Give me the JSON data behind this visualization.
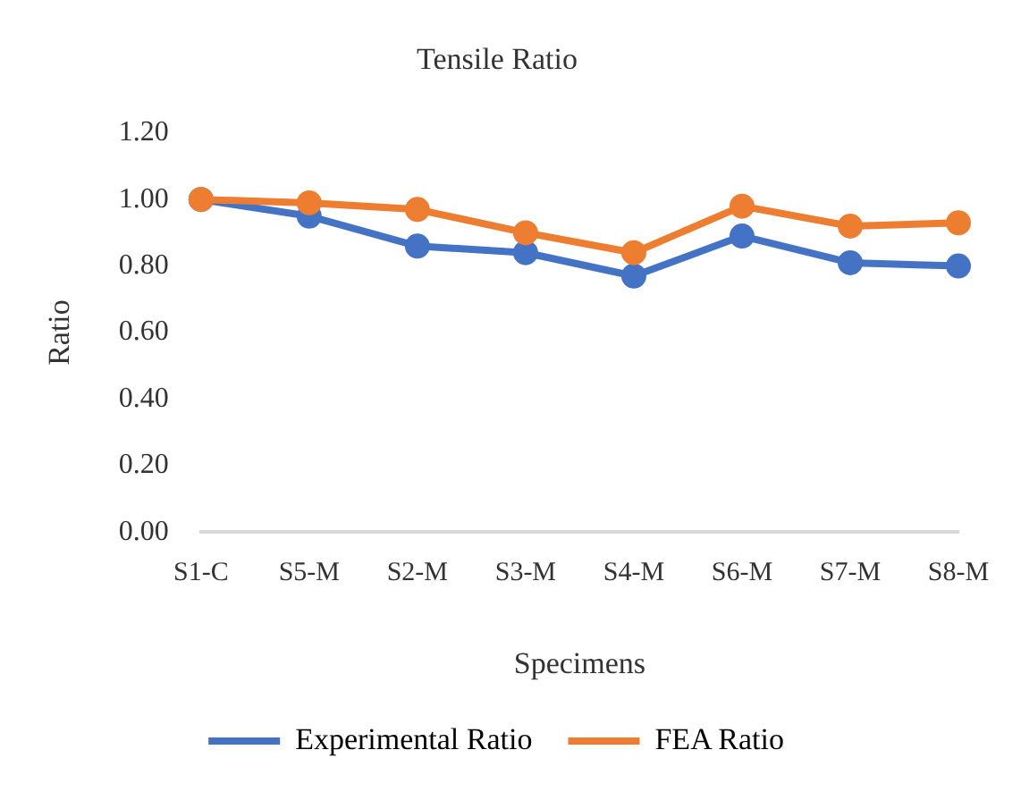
{
  "chart_data": {
    "type": "line",
    "title": "Tensile Ratio",
    "xlabel": "Specimens",
    "ylabel": "Ratio",
    "categories": [
      "S1-C",
      "S5-M",
      "S2-M",
      "S3-M",
      "S4-M",
      "S6-M",
      "S7-M",
      "S8-M"
    ],
    "series": [
      {
        "name": "Experimental Ratio",
        "color": "#4472c4",
        "values": [
          1.0,
          0.95,
          0.86,
          0.84,
          0.77,
          0.89,
          0.81,
          0.8
        ]
      },
      {
        "name": "FEA Ratio",
        "color": "#ed7d31",
        "values": [
          1.0,
          0.99,
          0.97,
          0.9,
          0.84,
          0.98,
          0.92,
          0.93
        ]
      }
    ],
    "ylim": [
      0,
      1.2
    ],
    "yticks": [
      {
        "value": 0,
        "label": "0.00"
      },
      {
        "value": 0.2,
        "label": "0.20"
      },
      {
        "value": 0.4,
        "label": "0.40"
      },
      {
        "value": 0.6,
        "label": "0.60"
      },
      {
        "value": 0.8,
        "label": "0.80"
      },
      {
        "value": 1,
        "label": "1.00"
      },
      {
        "value": 1.2,
        "label": "1.20"
      }
    ],
    "grid": false,
    "legend": "bottom",
    "marker": "circle",
    "line_style": "solid"
  }
}
